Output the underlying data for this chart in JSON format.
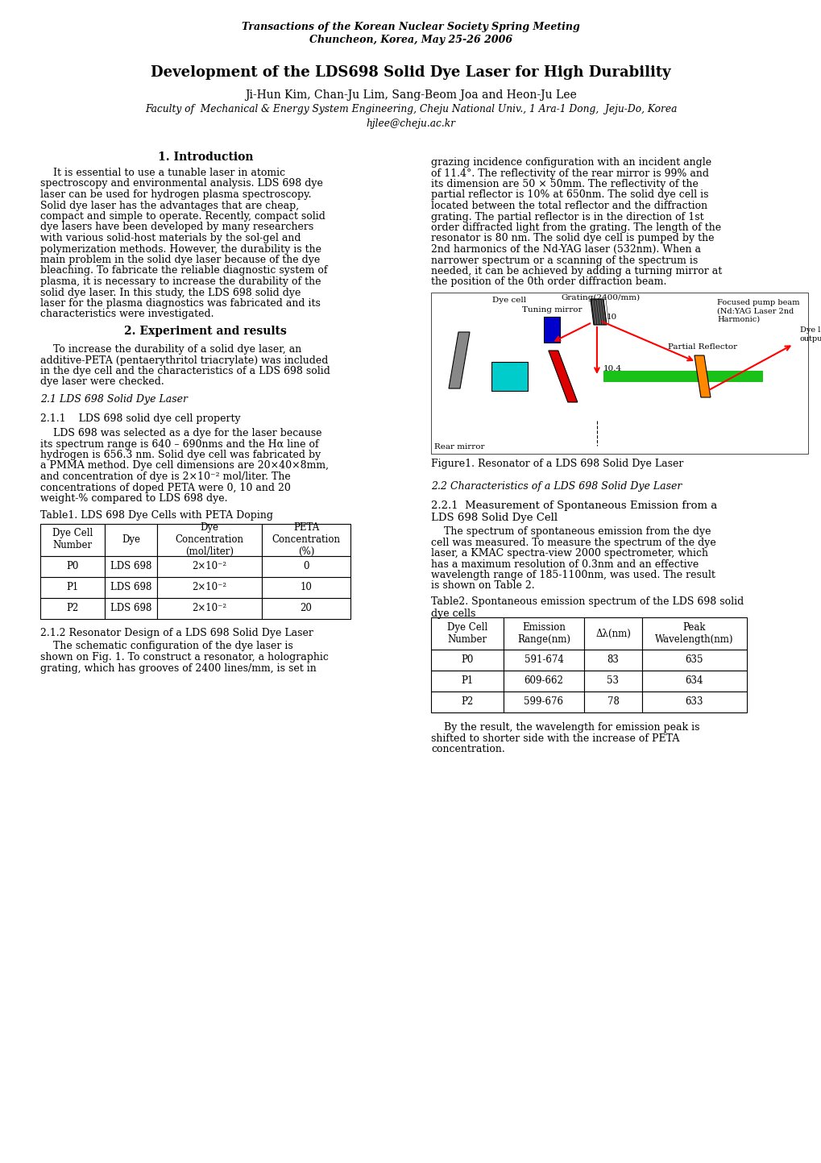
{
  "journal_line1": "Transactions of the Korean Nuclear Society Spring Meeting",
  "journal_line2": "Chuncheon, Korea, May 25-26 2006",
  "title": "Development of the LDS698 Solid Dye Laser for High Durability",
  "authors": "Ji-Hun Kim, Chan-Ju Lim, Sang-Beom Joa and Heon-Ju Lee",
  "affiliation": "Faculty of  Mechanical & Energy System Engineering, Cheju National Univ., 1 Ara-1 Dong,  Jeju-Do, Korea",
  "email": "hjlee@cheju.ac.kr",
  "sec1_title": "1. Introduction",
  "sec2_title": "2. Experiment and results",
  "sec21_title": "2.1 LDS 698 Solid Dye Laser",
  "sec211_title": "2.1.1    LDS 698 solid dye cell property",
  "table1_title": "Table1. LDS 698 Dye Cells with PETA Doping",
  "table1_headers": [
    "Dye Cell\nNumber",
    "Dye",
    "Dye\nConcentration\n(mol/liter)",
    "PETA\nConcentration\n(%)"
  ],
  "table1_rows": [
    [
      "P0",
      "LDS 698",
      "2×10⁻²",
      "0"
    ],
    [
      "P1",
      "LDS 698",
      "2×10⁻²",
      "10"
    ],
    [
      "P2",
      "LDS 698",
      "2×10⁻²",
      "20"
    ]
  ],
  "sec212_title": "2.1.2 Resonator Design of a LDS 698 Solid Dye Laser",
  "figure1_caption": "Figure1. Resonator of a LDS 698 Solid Dye Laser",
  "sec22_title": "2.2 Characteristics of a LDS 698 Solid Dye Laser",
  "sec221_title": "2.2.1  Measurement of Spontaneous Emission from a\nLDS 698 Solid Dye Cell",
  "table2_title": "Table2. Spontaneous emission spectrum of the LDS 698 solid\ndye cells",
  "table2_headers": [
    "Dye Cell\nNumber",
    "Emission\nRange(nm)",
    "Δλ(nm)",
    "Peak\nWavelength(nm)"
  ],
  "table2_rows": [
    [
      "P0",
      "591-674",
      "83",
      "635"
    ],
    [
      "P1",
      "609-662",
      "53",
      "634"
    ],
    [
      "P2",
      "599-676",
      "78",
      "633"
    ]
  ],
  "bg_color": "#ffffff",
  "text_color": "#000000",
  "sec1_left_lines": [
    "    It is essential to use a tunable laser in atomic",
    "spectroscopy and environmental analysis. LDS 698 dye",
    "laser can be used for hydrogen plasma spectroscopy.",
    "Solid dye laser has the advantages that are cheap,",
    "compact and simple to operate. Recently, compact solid",
    "dye lasers have been developed by many researchers",
    "with various solid-host materials by the sol-gel and",
    "polymerization methods. However, the durability is the",
    "main problem in the solid dye laser because of the dye",
    "bleaching. To fabricate the reliable diagnostic system of",
    "plasma, it is necessary to increase the durability of the",
    "solid dye laser. In this study, the LDS 698 solid dye",
    "laser for the plasma diagnostics was fabricated and its",
    "characteristics were investigated."
  ],
  "sec1_right_lines": [
    "grazing incidence configuration with an incident angle",
    "of 11.4°. The reflectivity of the rear mirror is 99% and",
    "its dimension are 50 × 50mm. The reflectivity of the",
    "partial reflector is 10% at 650nm. The solid dye cell is",
    "located between the total reflector and the diffraction",
    "grating. The partial reflector is in the direction of 1st",
    "order diffracted light from the grating. The length of the",
    "resonator is 80 nm. The solid dye cell is pumped by the",
    "2nd harmonics of the Nd-YAG laser (532nm). When a",
    "narrower spectrum or a scanning of the spectrum is",
    "needed, it can be achieved by adding a turning mirror at",
    "the position of the 0th order diffraction beam."
  ],
  "sec2_left_lines": [
    "    To increase the durability of a solid dye laser, an",
    "additive-PETA (pentaerythritol triacrylate) was included",
    "in the dye cell and the characteristics of a LDS 698 solid",
    "dye laser were checked."
  ],
  "sec211_lines": [
    "    LDS 698 was selected as a dye for the laser because",
    "its spectrum range is 640 – 690nms and the Hα line of",
    "hydrogen is 656.3 nm. Solid dye cell was fabricated by",
    "a PMMA method. Dye cell dimensions are 20×40×8mm,",
    "and concentration of dye is 2×10⁻² mol/liter. The",
    "concentrations of doped PETA were 0, 10 and 20",
    "weight-% compared to LDS 698 dye."
  ],
  "sec212_lines": [
    "    The schematic configuration of the dye laser is",
    "shown on Fig. 1. To construct a resonator, a holographic",
    "grating, which has grooves of 2400 lines/mm, is set in"
  ],
  "sec221_lines": [
    "    The spectrum of spontaneous emission from the dye",
    "cell was measured. To measure the spectrum of the dye",
    "laser, a KMAC spectra-view 2000 spectrometer, which",
    "has a maximum resolution of 0.3nm and an effective",
    "wavelength range of 185-1100nm, was used. The result",
    "is shown on Table 2."
  ],
  "sec_conclusion_lines": [
    "    By the result, the wavelength for emission peak is",
    "shifted to shorter side with the increase of PETA",
    "concentration."
  ]
}
